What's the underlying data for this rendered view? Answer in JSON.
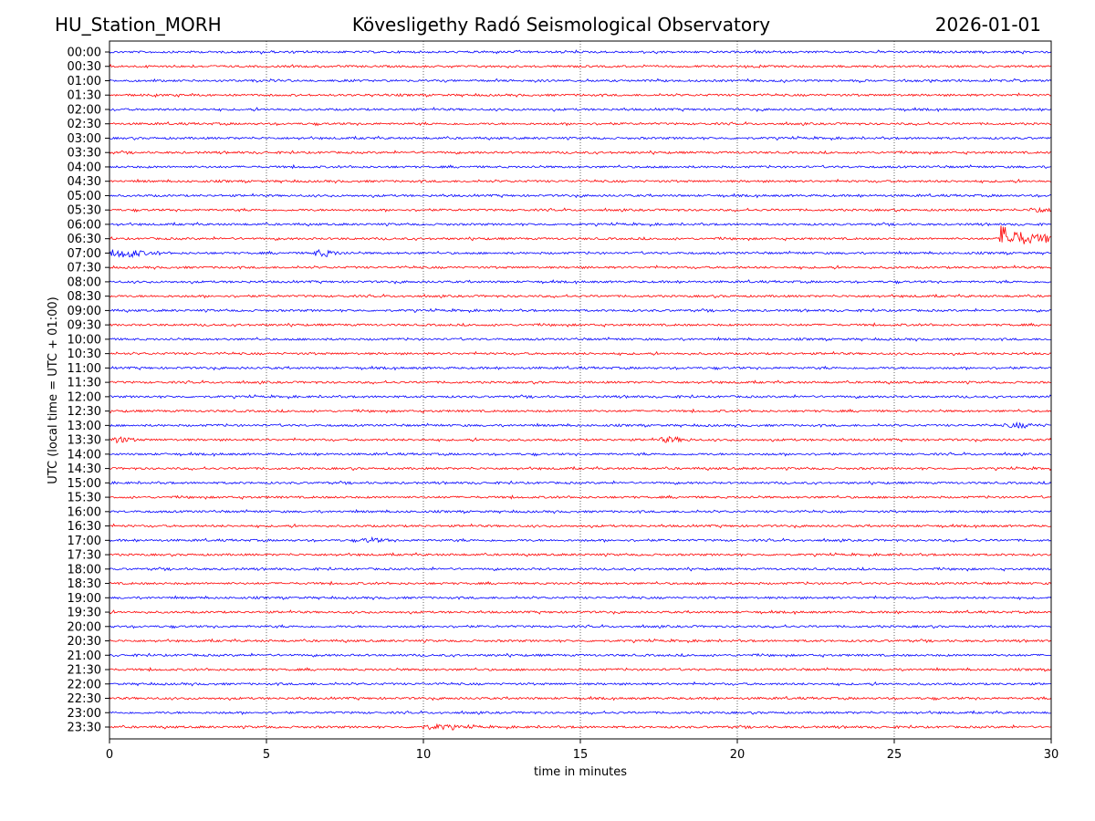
{
  "header": {
    "station": "HU_Station_MORH",
    "observatory": "Kövesligethy Radó Seismological Observatory",
    "date": "2026-01-01"
  },
  "chart_data": {
    "type": "line",
    "title": "Kövesligethy Radó Seismological Observatory",
    "xlabel": "time in minutes",
    "ylabel": "UTC (local time = UTC + 01:00)",
    "xlim": [
      0,
      30
    ],
    "xticks": [
      0,
      5,
      10,
      15,
      20,
      25,
      30
    ],
    "grid": "vertical dotted at 5-minute intervals",
    "row_labels": [
      "00:00",
      "00:30",
      "01:00",
      "01:30",
      "02:00",
      "02:30",
      "03:00",
      "03:30",
      "04:00",
      "04:30",
      "05:00",
      "05:30",
      "06:00",
      "06:30",
      "07:00",
      "07:30",
      "08:00",
      "08:30",
      "09:00",
      "09:30",
      "10:00",
      "10:30",
      "11:00",
      "11:30",
      "12:00",
      "12:30",
      "13:00",
      "13:30",
      "14:00",
      "14:30",
      "15:00",
      "15:30",
      "16:00",
      "16:30",
      "17:00",
      "17:30",
      "18:00",
      "18:30",
      "19:00",
      "19:30",
      "20:00",
      "20:30",
      "21:00",
      "21:30",
      "22:00",
      "22:30",
      "23:00",
      "23:30"
    ],
    "colors": [
      "#0000ff",
      "#ff0000"
    ],
    "events": [
      {
        "row": "05:30",
        "start_min": 29.3,
        "end_min": 30,
        "amplitude": 3
      },
      {
        "row": "06:30",
        "start_min": 28.35,
        "end_min": 30,
        "amplitude": 16
      },
      {
        "row": "07:00",
        "start_min": 0,
        "end_min": 1.6,
        "amplitude": 4
      },
      {
        "row": "07:00",
        "start_min": 6.4,
        "end_min": 7.6,
        "amplitude": 3
      },
      {
        "row": "13:00",
        "start_min": 28.5,
        "end_min": 30,
        "amplitude": 2
      },
      {
        "row": "13:30",
        "start_min": 0,
        "end_min": 1,
        "amplitude": 2.5
      },
      {
        "row": "13:30",
        "start_min": 17.5,
        "end_min": 18.6,
        "amplitude": 2.5
      },
      {
        "row": "17:00",
        "start_min": 8,
        "end_min": 9,
        "amplitude": 2
      },
      {
        "row": "23:30",
        "start_min": 9.8,
        "end_min": 11.8,
        "amplitude": 2
      }
    ]
  }
}
